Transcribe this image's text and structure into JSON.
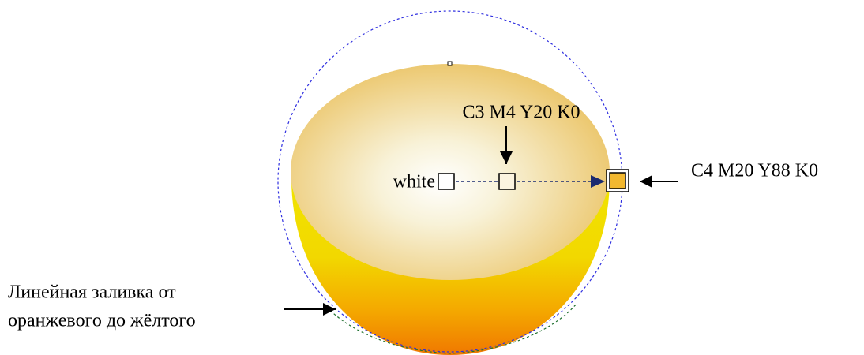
{
  "labels": {
    "midpoint": "C3 M4 Y20 K0",
    "start": "white",
    "end": "C4 M20 Y88 K0",
    "linear_fill": [
      "Линейная заливка от",
      "оранжевого до жёлтого"
    ]
  }
}
